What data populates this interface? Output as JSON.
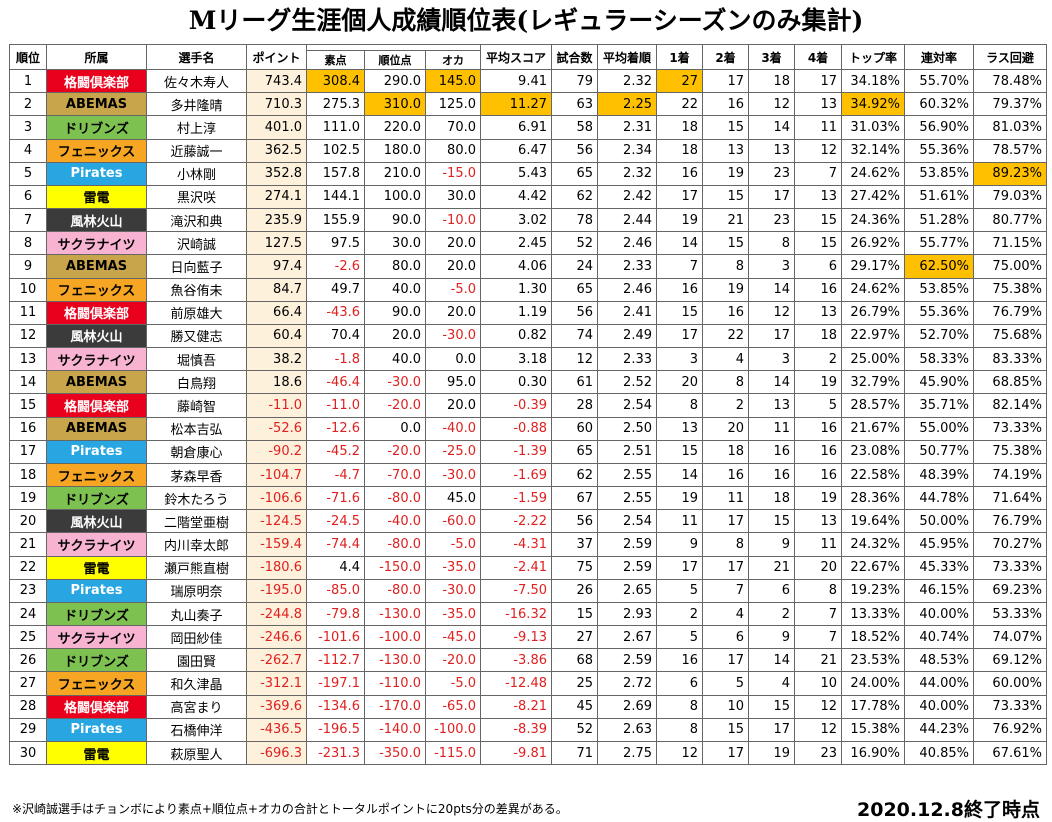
{
  "title": "Mリーグ生涯個人成績順位表(レギュラーシーズンのみ集計)",
  "headers": {
    "rank": "順位",
    "team": "所属",
    "player": "選手名",
    "point": "ポイント",
    "raw": "素点",
    "rank_pt": "順位点",
    "oka": "オカ",
    "avg_score": "平均スコア",
    "games": "試合数",
    "avg_rank": "平均着順",
    "first": "1着",
    "second": "2着",
    "third": "3着",
    "fourth": "4着",
    "top_rate": "トップ率",
    "rentai": "連対率",
    "las_avoid": "ラス回避"
  },
  "team_colors": {
    "格闘倶楽部": {
      "bg": "#e8001c",
      "fg": "#ffffff"
    },
    "ABEMAS": {
      "bg": "#c8a44a",
      "fg": "#000000"
    },
    "ドリブンズ": {
      "bg": "#7dc150",
      "fg": "#000000"
    },
    "フェニックス": {
      "bg": "#f6a623",
      "fg": "#000000"
    },
    "Pirates": {
      "bg": "#27a6e1",
      "fg": "#ffffff"
    },
    "雷電": {
      "bg": "#ffff00",
      "fg": "#000000"
    },
    "風林火山": {
      "bg": "#3b3b3b",
      "fg": "#ffffff"
    },
    "サクラナイツ": {
      "bg": "#f8b3d3",
      "fg": "#000000"
    }
  },
  "rows": [
    [
      "1",
      "格闘倶楽部",
      "佐々木寿人",
      "743.4",
      "308.4",
      "290.0",
      "145.0",
      "9.41",
      "79",
      "2.32",
      "27",
      "17",
      "18",
      "17",
      "34.18%",
      "55.70%",
      "78.48%"
    ],
    [
      "2",
      "ABEMAS",
      "多井隆晴",
      "710.3",
      "275.3",
      "310.0",
      "125.0",
      "11.27",
      "63",
      "2.25",
      "22",
      "16",
      "12",
      "13",
      "34.92%",
      "60.32%",
      "79.37%"
    ],
    [
      "3",
      "ドリブンズ",
      "村上淳",
      "401.0",
      "111.0",
      "220.0",
      "70.0",
      "6.91",
      "58",
      "2.31",
      "18",
      "15",
      "14",
      "11",
      "31.03%",
      "56.90%",
      "81.03%"
    ],
    [
      "4",
      "フェニックス",
      "近藤誠一",
      "362.5",
      "102.5",
      "180.0",
      "80.0",
      "6.47",
      "56",
      "2.34",
      "18",
      "13",
      "13",
      "12",
      "32.14%",
      "55.36%",
      "78.57%"
    ],
    [
      "5",
      "Pirates",
      "小林剛",
      "352.8",
      "157.8",
      "210.0",
      "-15.0",
      "5.43",
      "65",
      "2.32",
      "16",
      "19",
      "23",
      "7",
      "24.62%",
      "53.85%",
      "89.23%"
    ],
    [
      "6",
      "雷電",
      "黒沢咲",
      "274.1",
      "144.1",
      "100.0",
      "30.0",
      "4.42",
      "62",
      "2.42",
      "17",
      "15",
      "17",
      "13",
      "27.42%",
      "51.61%",
      "79.03%"
    ],
    [
      "7",
      "風林火山",
      "滝沢和典",
      "235.9",
      "155.9",
      "90.0",
      "-10.0",
      "3.02",
      "78",
      "2.44",
      "19",
      "21",
      "23",
      "15",
      "24.36%",
      "51.28%",
      "80.77%"
    ],
    [
      "8",
      "サクラナイツ",
      "沢崎誠",
      "127.5",
      "97.5",
      "30.0",
      "20.0",
      "2.45",
      "52",
      "2.46",
      "14",
      "15",
      "8",
      "15",
      "26.92%",
      "55.77%",
      "71.15%"
    ],
    [
      "9",
      "ABEMAS",
      "日向藍子",
      "97.4",
      "-2.6",
      "80.0",
      "20.0",
      "4.06",
      "24",
      "2.33",
      "7",
      "8",
      "3",
      "6",
      "29.17%",
      "62.50%",
      "75.00%"
    ],
    [
      "10",
      "フェニックス",
      "魚谷侑未",
      "84.7",
      "49.7",
      "40.0",
      "-5.0",
      "1.30",
      "65",
      "2.46",
      "16",
      "19",
      "14",
      "16",
      "24.62%",
      "53.85%",
      "75.38%"
    ],
    [
      "11",
      "格闘倶楽部",
      "前原雄大",
      "66.4",
      "-43.6",
      "90.0",
      "20.0",
      "1.19",
      "56",
      "2.41",
      "15",
      "16",
      "12",
      "13",
      "26.79%",
      "55.36%",
      "76.79%"
    ],
    [
      "12",
      "風林火山",
      "勝又健志",
      "60.4",
      "70.4",
      "20.0",
      "-30.0",
      "0.82",
      "74",
      "2.49",
      "17",
      "22",
      "17",
      "18",
      "22.97%",
      "52.70%",
      "75.68%"
    ],
    [
      "13",
      "サクラナイツ",
      "堀慎吾",
      "38.2",
      "-1.8",
      "40.0",
      "0.0",
      "3.18",
      "12",
      "2.33",
      "3",
      "4",
      "3",
      "2",
      "25.00%",
      "58.33%",
      "83.33%"
    ],
    [
      "14",
      "ABEMAS",
      "白鳥翔",
      "18.6",
      "-46.4",
      "-30.0",
      "95.0",
      "0.30",
      "61",
      "2.52",
      "20",
      "8",
      "14",
      "19",
      "32.79%",
      "45.90%",
      "68.85%"
    ],
    [
      "15",
      "格闘倶楽部",
      "藤崎智",
      "-11.0",
      "-11.0",
      "-20.0",
      "20.0",
      "-0.39",
      "28",
      "2.54",
      "8",
      "2",
      "13",
      "5",
      "28.57%",
      "35.71%",
      "82.14%"
    ],
    [
      "16",
      "ABEMAS",
      "松本吉弘",
      "-52.6",
      "-12.6",
      "0.0",
      "-40.0",
      "-0.88",
      "60",
      "2.50",
      "13",
      "20",
      "11",
      "16",
      "21.67%",
      "55.00%",
      "73.33%"
    ],
    [
      "17",
      "Pirates",
      "朝倉康心",
      "-90.2",
      "-45.2",
      "-20.0",
      "-25.0",
      "-1.39",
      "65",
      "2.51",
      "15",
      "18",
      "16",
      "16",
      "23.08%",
      "50.77%",
      "75.38%"
    ],
    [
      "18",
      "フェニックス",
      "茅森早香",
      "-104.7",
      "-4.7",
      "-70.0",
      "-30.0",
      "-1.69",
      "62",
      "2.55",
      "14",
      "16",
      "16",
      "16",
      "22.58%",
      "48.39%",
      "74.19%"
    ],
    [
      "19",
      "ドリブンズ",
      "鈴木たろう",
      "-106.6",
      "-71.6",
      "-80.0",
      "45.0",
      "-1.59",
      "67",
      "2.55",
      "19",
      "11",
      "18",
      "19",
      "28.36%",
      "44.78%",
      "71.64%"
    ],
    [
      "20",
      "風林火山",
      "二階堂亜樹",
      "-124.5",
      "-24.5",
      "-40.0",
      "-60.0",
      "-2.22",
      "56",
      "2.54",
      "11",
      "17",
      "15",
      "13",
      "19.64%",
      "50.00%",
      "76.79%"
    ],
    [
      "21",
      "サクラナイツ",
      "内川幸太郎",
      "-159.4",
      "-74.4",
      "-80.0",
      "-5.0",
      "-4.31",
      "37",
      "2.59",
      "9",
      "8",
      "9",
      "11",
      "24.32%",
      "45.95%",
      "70.27%"
    ],
    [
      "22",
      "雷電",
      "瀬戸熊直樹",
      "-180.6",
      "4.4",
      "-150.0",
      "-35.0",
      "-2.41",
      "75",
      "2.59",
      "17",
      "17",
      "21",
      "20",
      "22.67%",
      "45.33%",
      "73.33%"
    ],
    [
      "23",
      "Pirates",
      "瑞原明奈",
      "-195.0",
      "-85.0",
      "-80.0",
      "-30.0",
      "-7.50",
      "26",
      "2.65",
      "5",
      "7",
      "6",
      "8",
      "19.23%",
      "46.15%",
      "69.23%"
    ],
    [
      "24",
      "ドリブンズ",
      "丸山奏子",
      "-244.8",
      "-79.8",
      "-130.0",
      "-35.0",
      "-16.32",
      "15",
      "2.93",
      "2",
      "4",
      "2",
      "7",
      "13.33%",
      "40.00%",
      "53.33%"
    ],
    [
      "25",
      "サクラナイツ",
      "岡田紗佳",
      "-246.6",
      "-101.6",
      "-100.0",
      "-45.0",
      "-9.13",
      "27",
      "2.67",
      "5",
      "6",
      "9",
      "7",
      "18.52%",
      "40.74%",
      "74.07%"
    ],
    [
      "26",
      "ドリブンズ",
      "園田賢",
      "-262.7",
      "-112.7",
      "-130.0",
      "-20.0",
      "-3.86",
      "68",
      "2.59",
      "16",
      "17",
      "14",
      "21",
      "23.53%",
      "48.53%",
      "69.12%"
    ],
    [
      "27",
      "フェニックス",
      "和久津晶",
      "-312.1",
      "-197.1",
      "-110.0",
      "-5.0",
      "-12.48",
      "25",
      "2.72",
      "6",
      "5",
      "4",
      "10",
      "24.00%",
      "44.00%",
      "60.00%"
    ],
    [
      "28",
      "格闘倶楽部",
      "高宮まり",
      "-369.6",
      "-134.6",
      "-170.0",
      "-65.0",
      "-8.21",
      "45",
      "2.69",
      "8",
      "10",
      "15",
      "12",
      "17.78%",
      "40.00%",
      "73.33%"
    ],
    [
      "29",
      "Pirates",
      "石橋伸洋",
      "-436.5",
      "-196.5",
      "-140.0",
      "-100.0",
      "-8.39",
      "52",
      "2.63",
      "8",
      "15",
      "17",
      "12",
      "15.38%",
      "44.23%",
      "76.92%"
    ],
    [
      "30",
      "雷電",
      "萩原聖人",
      "-696.3",
      "-231.3",
      "-350.0",
      "-115.0",
      "-9.81",
      "71",
      "2.75",
      "12",
      "17",
      "19",
      "23",
      "16.90%",
      "40.85%",
      "67.61%"
    ]
  ],
  "highlights": [
    [
      0,
      4
    ],
    [
      0,
      6
    ],
    [
      0,
      10
    ],
    [
      1,
      5
    ],
    [
      1,
      7
    ],
    [
      1,
      9
    ],
    [
      1,
      14
    ],
    [
      4,
      16
    ],
    [
      8,
      15
    ]
  ],
  "highlight_color": "#ffc000",
  "footnote": "※沢崎誠選手はチョンボにより素点+順位点+オカの合計とトータルポイントに20pts分の差異がある。",
  "date": "2020.12.8終了時点"
}
